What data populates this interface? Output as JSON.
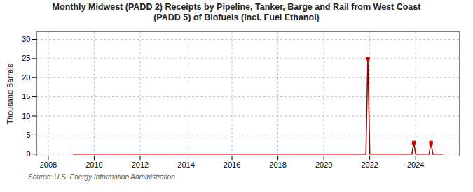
{
  "chart_data": {
    "type": "line",
    "title": "Monthly Midwest (PADD 2) Receipts by Pipeline, Tanker, Barge and Rail from West Coast\n(PADD 5) of Biofuels (incl. Fuel Ethanol)",
    "ylabel": "Thousand Barrels",
    "source": "Source: U.S. Energy Information Administration",
    "x": [
      2009.083,
      2009.167,
      2009.25,
      2009.333,
      2009.417,
      2009.5,
      2009.583,
      2009.667,
      2009.75,
      2009.833,
      2009.917,
      2010.0,
      2010.083,
      2010.167,
      2010.25,
      2010.333,
      2010.417,
      2010.5,
      2010.583,
      2010.667,
      2010.75,
      2010.833,
      2010.917,
      2011.0,
      2011.083,
      2011.167,
      2011.25,
      2011.333,
      2011.417,
      2011.5,
      2011.583,
      2011.667,
      2011.75,
      2011.833,
      2011.917,
      2012.0,
      2012.083,
      2012.167,
      2012.25,
      2012.333,
      2012.417,
      2012.5,
      2012.583,
      2012.667,
      2012.75,
      2012.833,
      2012.917,
      2013.0,
      2013.083,
      2013.167,
      2013.25,
      2013.333,
      2013.417,
      2013.5,
      2013.583,
      2013.667,
      2013.75,
      2013.833,
      2013.917,
      2014.0,
      2014.083,
      2014.167,
      2014.25,
      2014.333,
      2014.417,
      2014.5,
      2014.583,
      2014.667,
      2014.75,
      2014.833,
      2014.917,
      2015.0,
      2015.083,
      2015.167,
      2015.25,
      2015.333,
      2015.417,
      2015.5,
      2015.583,
      2015.667,
      2015.75,
      2015.833,
      2015.917,
      2016.0,
      2016.083,
      2016.167,
      2016.25,
      2016.333,
      2016.417,
      2016.5,
      2016.583,
      2016.667,
      2016.75,
      2016.833,
      2016.917,
      2017.0,
      2017.083,
      2017.167,
      2017.25,
      2017.333,
      2017.417,
      2017.5,
      2017.583,
      2017.667,
      2017.75,
      2017.833,
      2017.917,
      2018.0,
      2018.083,
      2018.167,
      2018.25,
      2018.333,
      2018.417,
      2018.5,
      2018.583,
      2018.667,
      2018.75,
      2018.833,
      2018.917,
      2019.0,
      2019.083,
      2019.167,
      2019.25,
      2019.333,
      2019.417,
      2019.5,
      2019.583,
      2019.667,
      2019.75,
      2019.833,
      2019.917,
      2020.0,
      2020.083,
      2020.167,
      2020.25,
      2020.333,
      2020.417,
      2020.5,
      2020.583,
      2020.667,
      2020.75,
      2020.833,
      2020.917,
      2021.0,
      2021.083,
      2021.167,
      2021.25,
      2021.333,
      2021.417,
      2021.5,
      2021.583,
      2021.667,
      2021.75,
      2021.833,
      2021.917,
      2022.0,
      2022.083,
      2022.167,
      2022.25,
      2022.333,
      2022.417,
      2022.5,
      2022.583,
      2022.667,
      2022.75,
      2022.833,
      2022.917,
      2023.0,
      2023.083,
      2023.167,
      2023.25,
      2023.333,
      2023.417,
      2023.5,
      2023.583,
      2023.667,
      2023.75,
      2023.833,
      2023.917,
      2024.0,
      2024.083,
      2024.167,
      2024.25,
      2024.333,
      2024.417,
      2024.5,
      2024.583,
      2024.667,
      2024.75,
      2024.833,
      2024.917,
      2025.0,
      2025.083,
      2025.167
    ],
    "series": [
      {
        "type": "line",
        "color": "#8b0000",
        "values": [
          0,
          0,
          0,
          0,
          0,
          0,
          0,
          0,
          0,
          0,
          0,
          0,
          0,
          0,
          0,
          0,
          0,
          0,
          0,
          0,
          0,
          0,
          0,
          0,
          0,
          0,
          0,
          0,
          0,
          0,
          0,
          0,
          0,
          0,
          0,
          0,
          0,
          0,
          0,
          0,
          0,
          0,
          0,
          0,
          0,
          0,
          0,
          0,
          0,
          0,
          0,
          0,
          0,
          0,
          0,
          0,
          0,
          0,
          0,
          0,
          0,
          0,
          0,
          0,
          0,
          0,
          0,
          0,
          0,
          0,
          0,
          0,
          0,
          0,
          0,
          0,
          0,
          0,
          0,
          0,
          0,
          0,
          0,
          0,
          0,
          0,
          0,
          0,
          0,
          0,
          0,
          0,
          0,
          0,
          0,
          0,
          0,
          0,
          0,
          0,
          0,
          0,
          0,
          0,
          0,
          0,
          0,
          0,
          0,
          0,
          0,
          0,
          0,
          0,
          0,
          0,
          0,
          0,
          0,
          0,
          0,
          0,
          0,
          0,
          0,
          0,
          0,
          0,
          0,
          0,
          0,
          0,
          0,
          0,
          0,
          0,
          0,
          0,
          0,
          0,
          0,
          0,
          0,
          0,
          0,
          0,
          0,
          0,
          0,
          0,
          0,
          0,
          0,
          0,
          25,
          0,
          0,
          0,
          0,
          0,
          0,
          0,
          0,
          0,
          0,
          0,
          0,
          0,
          0,
          0,
          0,
          0,
          0,
          0,
          0,
          0,
          0,
          0,
          3,
          0,
          0,
          0,
          0,
          0,
          0,
          0,
          0,
          3,
          0,
          0,
          0,
          0,
          0,
          0
        ]
      },
      {
        "type": "scatter",
        "color": "#cc0000",
        "marker": "square",
        "values": [
          null,
          null,
          null,
          null,
          null,
          null,
          null,
          null,
          null,
          null,
          null,
          null,
          null,
          null,
          null,
          null,
          null,
          null,
          null,
          null,
          null,
          null,
          null,
          null,
          null,
          null,
          null,
          null,
          null,
          null,
          null,
          null,
          null,
          null,
          null,
          null,
          null,
          null,
          null,
          null,
          null,
          null,
          null,
          null,
          null,
          null,
          null,
          null,
          null,
          null,
          null,
          null,
          null,
          null,
          null,
          null,
          null,
          null,
          null,
          null,
          null,
          null,
          null,
          null,
          null,
          null,
          null,
          null,
          null,
          null,
          null,
          null,
          null,
          null,
          null,
          null,
          null,
          null,
          null,
          null,
          null,
          null,
          null,
          null,
          null,
          null,
          null,
          null,
          null,
          null,
          null,
          null,
          null,
          null,
          null,
          null,
          null,
          null,
          null,
          null,
          null,
          null,
          null,
          null,
          null,
          null,
          null,
          null,
          null,
          null,
          null,
          null,
          null,
          null,
          null,
          null,
          null,
          null,
          null,
          null,
          null,
          null,
          null,
          null,
          null,
          null,
          null,
          null,
          null,
          null,
          null,
          null,
          null,
          null,
          null,
          null,
          null,
          null,
          null,
          null,
          null,
          null,
          null,
          null,
          null,
          null,
          null,
          null,
          null,
          null,
          null,
          null,
          null,
          null,
          25,
          null,
          null,
          null,
          null,
          null,
          null,
          null,
          null,
          null,
          null,
          null,
          null,
          null,
          null,
          null,
          null,
          null,
          null,
          null,
          null,
          null,
          null,
          null,
          3,
          null,
          null,
          null,
          null,
          null,
          null,
          null,
          null,
          3,
          null,
          null,
          null,
          null,
          null,
          null
        ]
      }
    ],
    "xlim": [
      2007.5,
      2025.9
    ],
    "xticks": [
      2008,
      2010,
      2012,
      2014,
      2016,
      2018,
      2020,
      2022,
      2024
    ],
    "ylim": [
      -0.5,
      32
    ],
    "yticks": [
      0,
      5,
      10,
      15,
      20,
      25,
      30
    ],
    "grid": true
  }
}
